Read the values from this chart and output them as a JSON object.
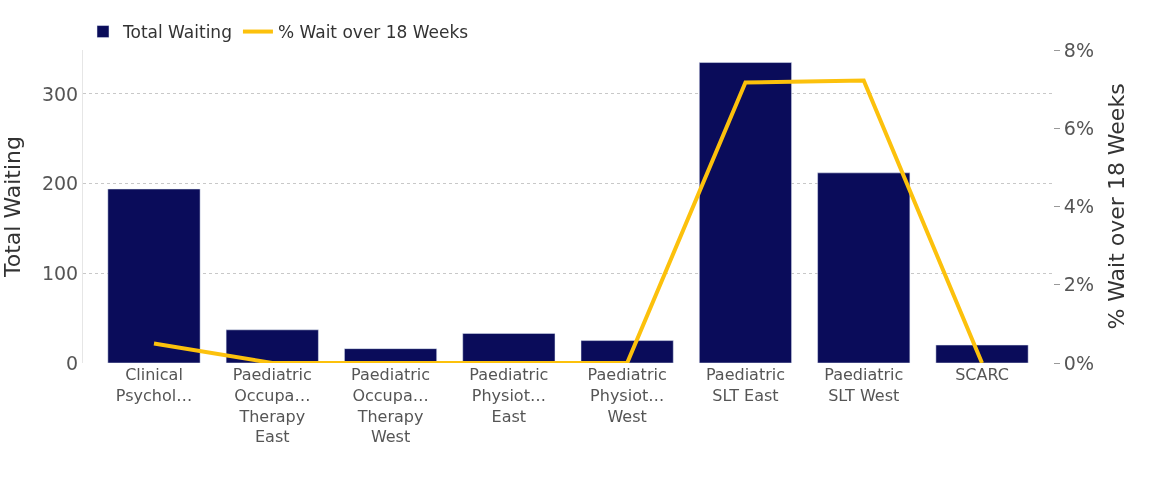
{
  "chart_data": {
    "type": "bar",
    "categories": [
      "Clinical\nPsychol…",
      "Paediatric\nOccupa…\nTherapy\nEast",
      "Paediatric\nOccupa…\nTherapy\nWest",
      "Paediatric\nPhysiot…\nEast",
      "Paediatric\nPhysiot…\nWest",
      "Paediatric\nSLT East",
      "Paediatric\nSLT West",
      "SCARC"
    ],
    "series": [
      {
        "name": "Total Waiting",
        "color": "#0a0c5a",
        "values": [
          194,
          37,
          16,
          33,
          25,
          335,
          212,
          20
        ]
      },
      {
        "name": "% Wait over 18 Weeks",
        "type": "line",
        "axis": "y2",
        "color": "#fcc10c",
        "values": [
          0.5,
          0,
          0,
          0,
          0,
          7.17,
          7.22,
          0
        ]
      }
    ],
    "ylabel": "Total Waiting",
    "y2label": "% Wait over 18 Weeks",
    "ylim": [
      0,
      349
    ],
    "yticks": [
      0,
      100,
      200,
      300
    ],
    "y2lim": [
      0,
      8
    ],
    "y2ticks": [
      {
        "value": 0,
        "label": "0%"
      },
      {
        "value": 2,
        "label": "2%"
      },
      {
        "value": 4,
        "label": "4%"
      },
      {
        "value": 6,
        "label": "6%"
      },
      {
        "value": 8,
        "label": "8%"
      }
    ],
    "grid": "y",
    "legend": "top left",
    "marker": "none",
    "line_style": "solid"
  }
}
